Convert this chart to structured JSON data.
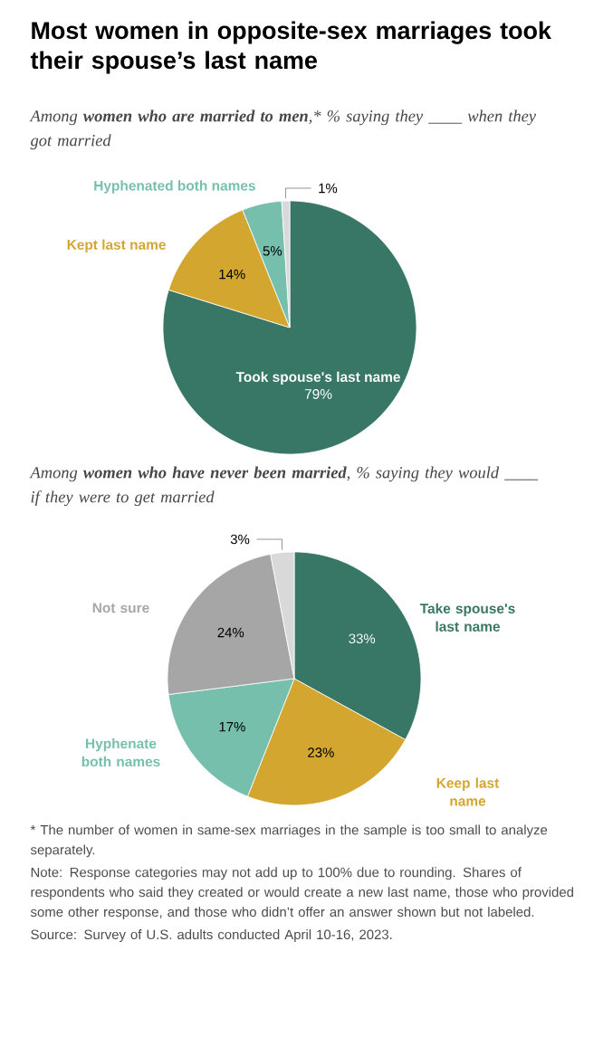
{
  "chart_data": [
    {
      "type": "pie",
      "title": "Most women in opposite-sex marriages took their spouse’s last name",
      "subtitle": "Among **women who are married to men**,* % saying they ____ when they got married",
      "categories": [
        "Took spouse's last name",
        "Kept last name",
        "Hyphenated both names",
        null
      ],
      "values": [
        79,
        14,
        5,
        1
      ],
      "colors": [
        "#387766",
        "#d3a62f",
        "#77bfad",
        "#d9d9d9"
      ],
      "value_labels": [
        "79%",
        "14%",
        "5%",
        "1%"
      ]
    },
    {
      "type": "pie",
      "subtitle": "Among **women who have never been married**, % saying they would ____ if they were to get married",
      "categories": [
        "Take spouse's last name",
        "Keep last name",
        "Hyphenate both names",
        "Not sure",
        null
      ],
      "values": [
        33,
        23,
        17,
        24,
        3
      ],
      "colors": [
        "#387766",
        "#d3a62f",
        "#77bfad",
        "#a6a6a6",
        "#d9d9d9"
      ],
      "value_labels": [
        "33%",
        "23%",
        "17%",
        "24%",
        "3%"
      ],
      "annotations": [
        "* The number of women in same-sex marriages in the sample is too small to analyze separately.",
        "Note: Response categories may not add up to 100% due to rounding. Shares of respondents who said they created or would create a new last name, those who provided some other response, and those who didn’t offer an answer shown but not labeled.",
        "Source: Survey of U.S. adults conducted April 10-16, 2023."
      ]
    }
  ]
}
